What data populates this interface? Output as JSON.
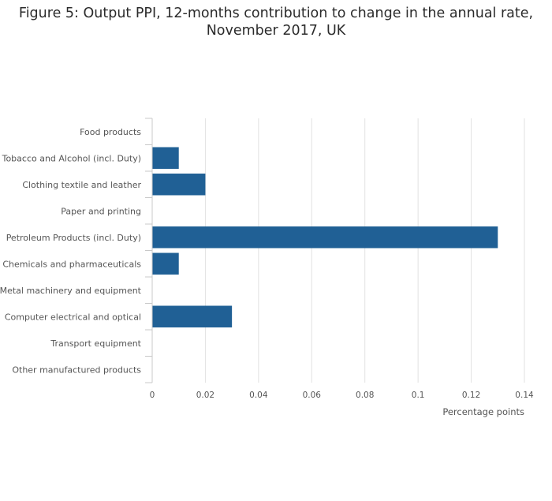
{
  "chart_data": {
    "type": "bar",
    "orientation": "horizontal",
    "title_line1": "Figure 5: Output PPI, 12-months contribution to change in the annual rate,",
    "title_line2": "November 2017, UK",
    "xlabel": "Percentage points",
    "ylabel": "",
    "categories": [
      "Food products",
      "Tobacco and Alcohol (incl. Duty)",
      "Clothing textile and leather",
      "Paper and printing",
      "Petroleum Products (incl. Duty)",
      "Chemicals and pharmaceuticals",
      "Metal machinery and equipment",
      "Computer electrical and optical",
      "Transport equipment",
      "Other manufactured products"
    ],
    "values": [
      0,
      0.01,
      0.02,
      0,
      0.13,
      0.01,
      0,
      0.03,
      0,
      0
    ],
    "xlim": [
      0,
      0.14
    ],
    "xticks": [
      0,
      0.02,
      0.04,
      0.06,
      0.08,
      0.1,
      0.12,
      0.14
    ],
    "xtick_labels": [
      "0",
      "0.02",
      "0.04",
      "0.06",
      "0.08",
      "0.1",
      "0.12",
      "0.14"
    ],
    "grid": true,
    "legend": "none",
    "bar_color": "#206095"
  }
}
